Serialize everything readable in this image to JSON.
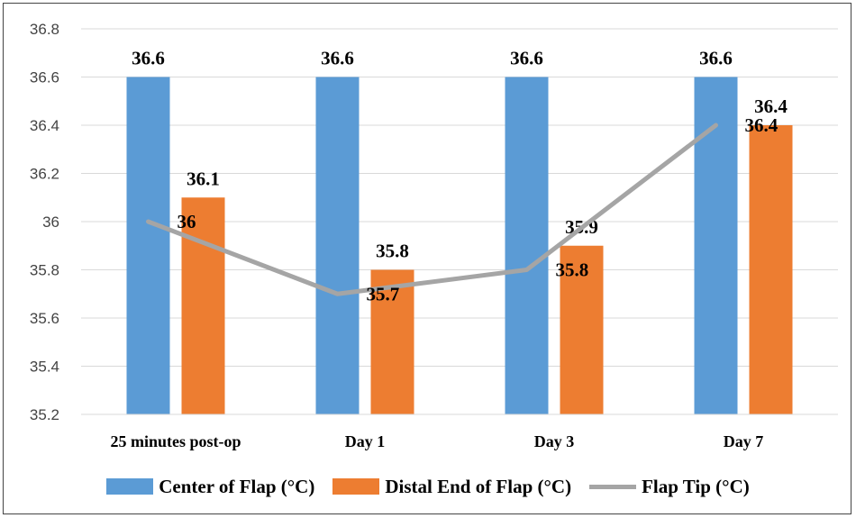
{
  "chart_data": {
    "type": "bar",
    "categories": [
      "25 minutes post-op",
      "Day 1",
      "Day 3",
      "Day 7"
    ],
    "series": [
      {
        "name": "Center of Flap (°C)",
        "kind": "bar",
        "color": "#5B9BD5",
        "values": [
          36.6,
          36.6,
          36.6,
          36.6
        ]
      },
      {
        "name": "Distal End of Flap (°C)",
        "kind": "bar",
        "color": "#ED7D31",
        "values": [
          36.1,
          35.8,
          35.9,
          36.4
        ]
      },
      {
        "name": "Flap Tip (°C)",
        "kind": "line",
        "color": "#A5A5A5",
        "values": [
          36,
          35.7,
          35.8,
          36.4
        ]
      }
    ],
    "ylim": [
      35.2,
      36.8
    ],
    "yticks": [
      "35.2",
      "35.4",
      "35.6",
      "35.8",
      "36",
      "36.2",
      "36.4",
      "36.6",
      "36.8"
    ],
    "grid": true,
    "legend_position": "bottom",
    "data_labels": {
      "center": [
        "36.6",
        "36.6",
        "36.6",
        "36.6"
      ],
      "distal": [
        "36.1",
        "35.8",
        "35.9",
        "36.4"
      ],
      "tip": [
        "36",
        "35.7",
        "35.8",
        "36.4"
      ]
    }
  }
}
